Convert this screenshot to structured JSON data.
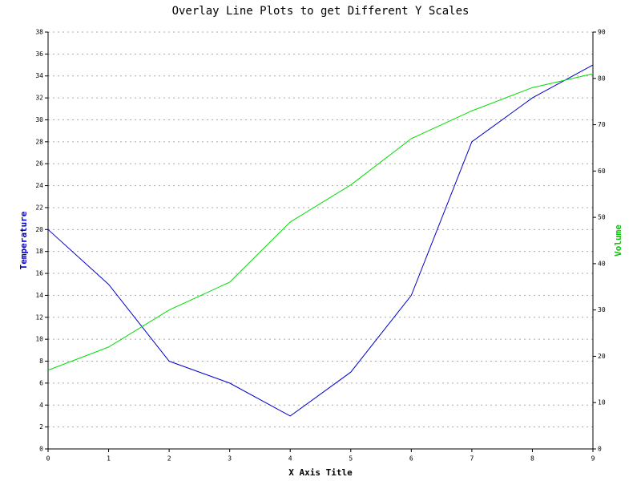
{
  "chart_data": {
    "type": "line",
    "title": "Overlay Line Plots to get Different Y Scales",
    "x_label": "X Axis Title",
    "y_label": "Temperature",
    "y2_label": "Volume",
    "x": [
      0,
      1,
      2,
      3,
      4,
      5,
      6,
      7,
      8,
      9
    ],
    "xlim": [
      0,
      9
    ],
    "xticks": [
      0,
      1,
      2,
      3,
      4,
      5,
      6,
      7,
      8,
      9
    ],
    "ylim": [
      0,
      38
    ],
    "yticks": [
      0,
      2,
      4,
      6,
      8,
      10,
      12,
      14,
      16,
      18,
      20,
      22,
      24,
      26,
      28,
      30,
      32,
      34,
      36,
      38
    ],
    "y2lim": [
      0,
      90
    ],
    "y2ticks": [
      0,
      10,
      20,
      30,
      40,
      50,
      60,
      70,
      80,
      90
    ],
    "grid": true,
    "series": [
      {
        "color": "#0000cc",
        "axis": "y",
        "values": [
          20,
          15,
          8,
          6,
          3,
          7,
          14,
          28,
          32,
          35
        ]
      },
      {
        "color": "#00dd00",
        "axis": "y2",
        "values": [
          17,
          22,
          30,
          36,
          49,
          57,
          67,
          73,
          78,
          81
        ]
      }
    ]
  }
}
